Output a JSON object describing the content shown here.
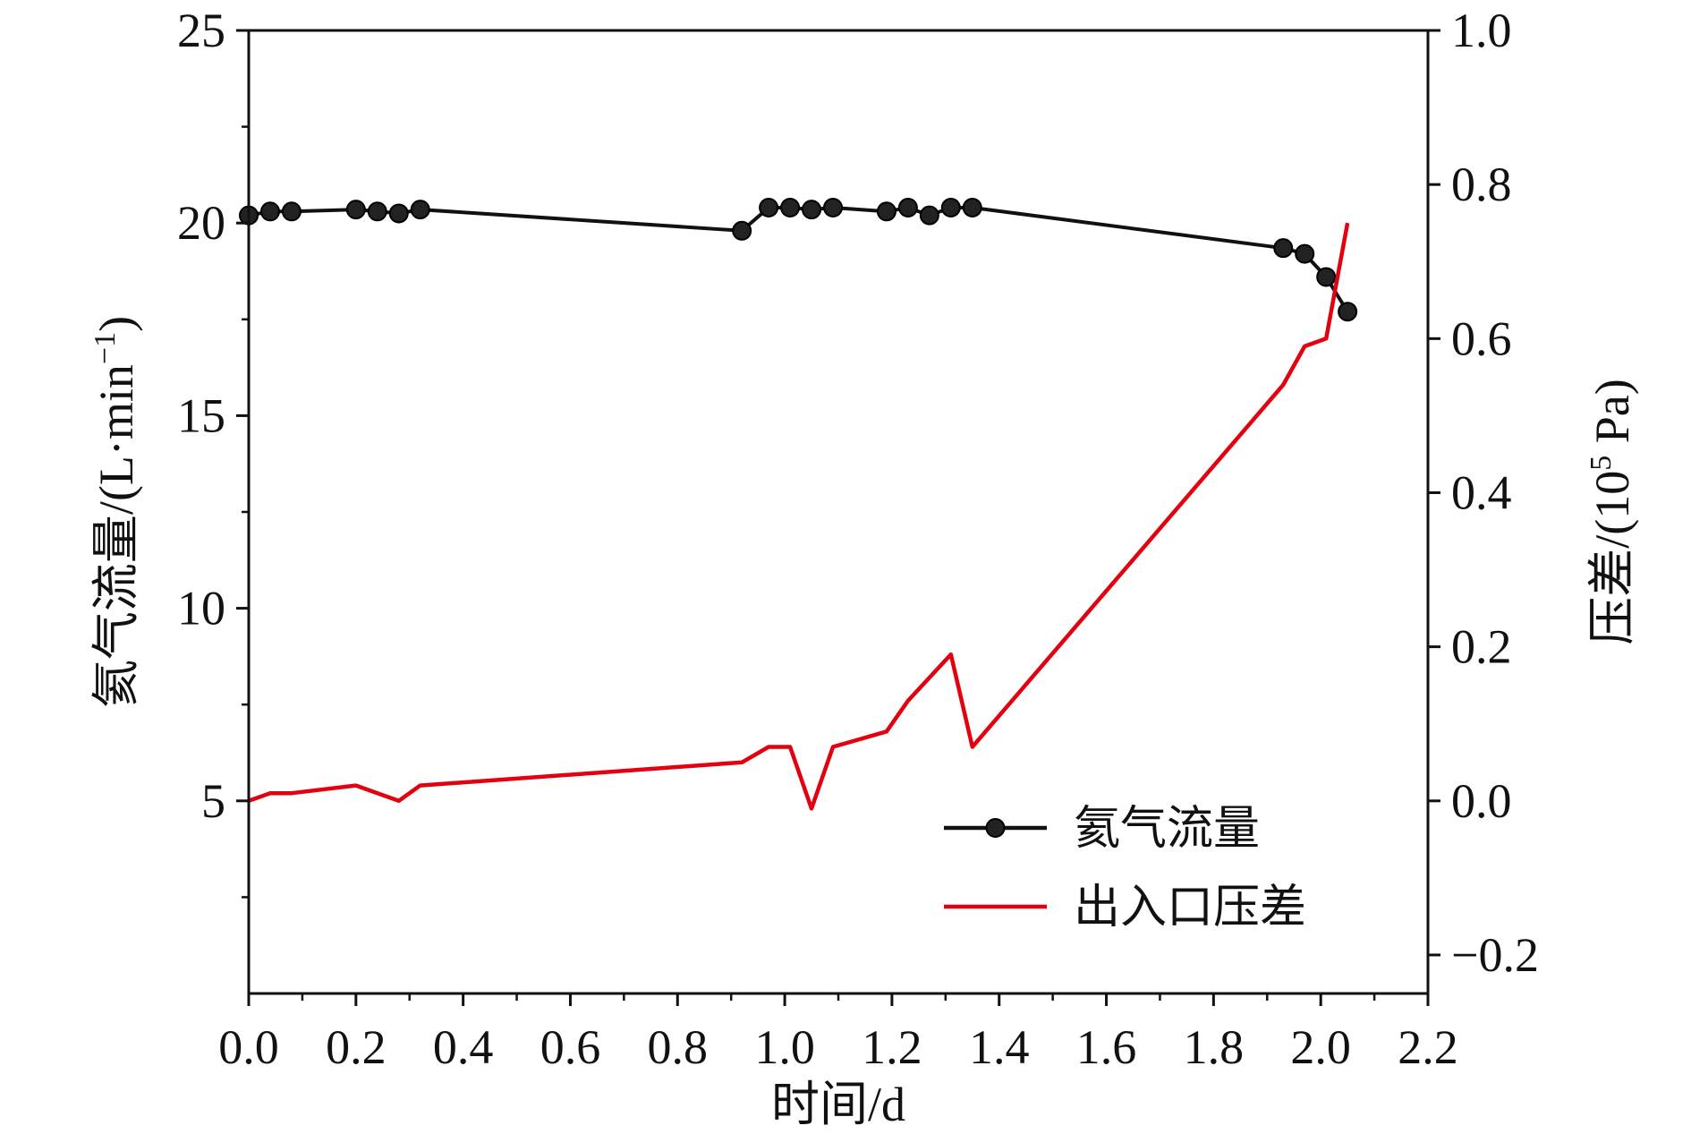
{
  "chart_data": {
    "type": "line",
    "xlabel": "时间/d",
    "ylabel_left": {
      "prefix": "氦气流量/(L·min",
      "sup": "−1",
      "suffix": ")"
    },
    "ylabel_right": {
      "prefix": "压差/(10",
      "sup": "5",
      "suffix": " Pa)"
    },
    "xlim": [
      0.0,
      2.2
    ],
    "ylim_left": [
      0,
      25
    ],
    "ylim_right": [
      -0.25,
      1.0
    ],
    "x_ticks": [
      "0.0",
      "0.2",
      "0.4",
      "0.6",
      "0.8",
      "1.0",
      "1.2",
      "1.4",
      "1.6",
      "1.8",
      "2.0",
      "2.2"
    ],
    "y_left_ticks": [
      "5",
      "10",
      "15",
      "20",
      "25"
    ],
    "y_right_ticks": [
      "−0.2",
      "0.0",
      "0.2",
      "0.4",
      "0.6",
      "0.8",
      "1.0"
    ],
    "legend": {
      "position": "bottom-right"
    },
    "series": [
      {
        "name": "氦气流量",
        "axis": "left",
        "color": "#111111",
        "marker": "circle",
        "x": [
          0.0,
          0.04,
          0.08,
          0.2,
          0.24,
          0.28,
          0.32,
          0.92,
          0.97,
          1.01,
          1.05,
          1.09,
          1.19,
          1.23,
          1.27,
          1.31,
          1.35,
          1.93,
          1.97,
          2.01,
          2.05
        ],
        "y": [
          20.2,
          20.3,
          20.3,
          20.35,
          20.3,
          20.25,
          20.35,
          19.8,
          20.4,
          20.4,
          20.35,
          20.4,
          20.3,
          20.4,
          20.2,
          20.4,
          20.4,
          19.35,
          19.2,
          18.6,
          17.7
        ]
      },
      {
        "name": "出入口压差",
        "axis": "right",
        "color": "#e3000f",
        "x": [
          0.0,
          0.04,
          0.08,
          0.2,
          0.28,
          0.32,
          0.92,
          0.97,
          1.01,
          1.05,
          1.09,
          1.19,
          1.23,
          1.27,
          1.31,
          1.35,
          1.93,
          1.97,
          2.01,
          2.05
        ],
        "y": [
          0.0,
          0.01,
          0.01,
          0.02,
          0.0,
          0.02,
          0.05,
          0.07,
          0.07,
          -0.01,
          0.07,
          0.09,
          0.13,
          0.16,
          0.19,
          0.07,
          0.54,
          0.59,
          0.6,
          0.75
        ]
      }
    ]
  }
}
